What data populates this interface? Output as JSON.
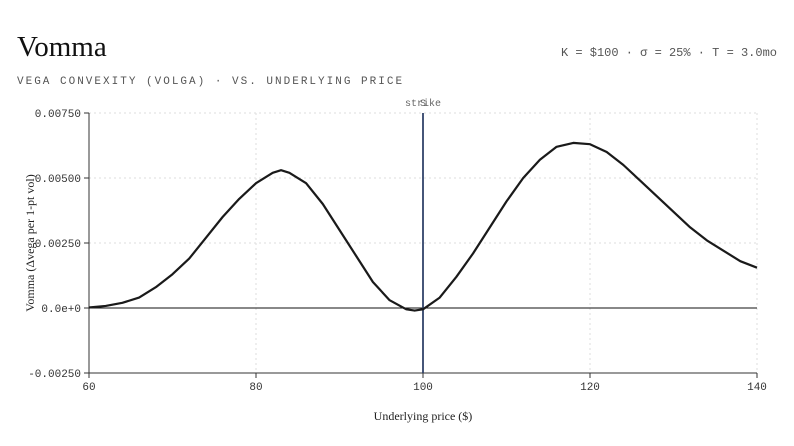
{
  "chart_data": {
    "type": "line",
    "title": "Vomma",
    "subtitle": "VEGA CONVEXITY (VOLGA) · VS. UNDERLYING PRICE",
    "params": "K = $100 · σ = 25% · T = 3.0mo",
    "x_label": "Underlying price ($)",
    "y_label": "Vomma (Δvega per 1-pt vol)",
    "x": [
      60,
      62,
      64,
      66,
      68,
      70,
      72,
      74,
      76,
      78,
      80,
      82,
      83,
      84,
      86,
      88,
      90,
      92,
      94,
      96,
      98,
      99,
      100,
      102,
      104,
      106,
      108,
      110,
      112,
      114,
      116,
      118,
      120,
      122,
      124,
      126,
      128,
      130,
      132,
      134,
      136,
      138,
      140
    ],
    "series": [
      {
        "name": "Vomma",
        "color": "#1a1a1a",
        "values": [
          2e-05,
          8e-05,
          0.0002,
          0.0004,
          0.0008,
          0.0013,
          0.0019,
          0.0027,
          0.0035,
          0.0042,
          0.0048,
          0.0052,
          0.0053,
          0.0052,
          0.0048,
          0.004,
          0.003,
          0.002,
          0.001,
          0.0003,
          -5e-05,
          -0.0001,
          -5e-05,
          0.0004,
          0.0012,
          0.0021,
          0.0031,
          0.0041,
          0.005,
          0.0057,
          0.0062,
          0.00635,
          0.0063,
          0.006,
          0.0055,
          0.0049,
          0.0043,
          0.0037,
          0.0031,
          0.0026,
          0.0022,
          0.0018,
          0.00155
        ]
      }
    ],
    "xlim": [
      60,
      140
    ],
    "xticks": [
      60,
      80,
      100,
      120,
      140
    ],
    "ylim": [
      -0.0025,
      0.0075
    ],
    "yticks": [
      {
        "value": -0.0025,
        "label": "-0.00250"
      },
      {
        "value": 0,
        "label": "0.0e+0"
      },
      {
        "value": 0.0025,
        "label": "0.00250"
      },
      {
        "value": 0.005,
        "label": "0.00500"
      },
      {
        "value": 0.0075,
        "label": "0.00750"
      }
    ],
    "grid": true,
    "markers": [
      {
        "x": 100,
        "label": "strike",
        "color": "#2c3e66"
      },
      {
        "x": 100,
        "label": "S",
        "color": "#2c3e66"
      }
    ]
  }
}
